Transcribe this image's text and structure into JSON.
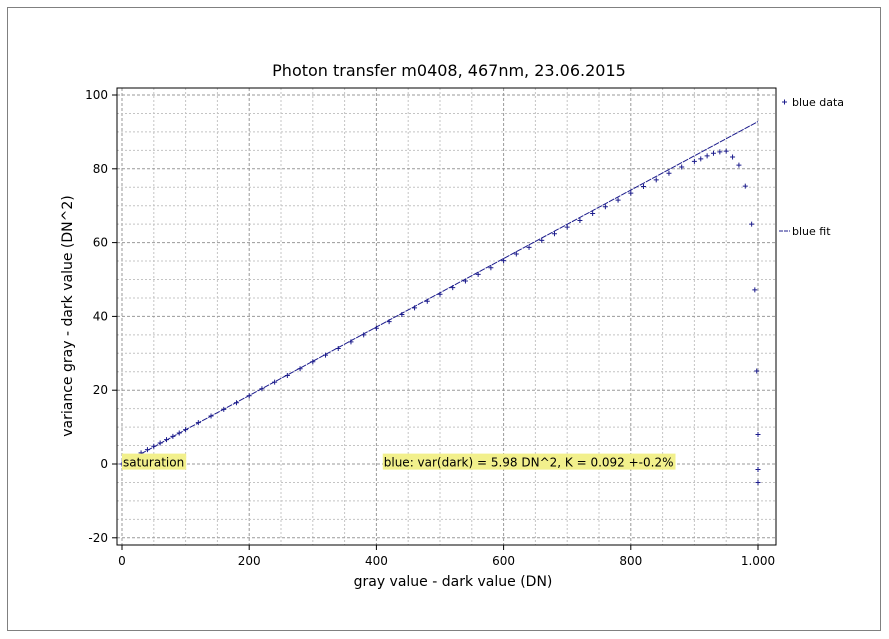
{
  "chart_data": {
    "type": "scatter",
    "title": "Photon transfer m0408, 467nm, 23.06.2015",
    "xlabel": "gray value - dark value (DN)",
    "ylabel": "variance gray - dark value (DN^2)",
    "xlim": [
      0,
      1000
    ],
    "ylim": [
      -20,
      100
    ],
    "x_ticks": [
      0,
      200,
      400,
      600,
      800,
      1000
    ],
    "x_tick_labels": [
      "0",
      "200",
      "400",
      "600",
      "800",
      "1.000"
    ],
    "y_ticks": [
      -20,
      0,
      20,
      40,
      60,
      80,
      100
    ],
    "y_tick_labels": [
      "-20",
      "0",
      "20",
      "40",
      "60",
      "80",
      "100"
    ],
    "grid": true,
    "legend_position": "right",
    "color": "#1c1c8c",
    "annotation_color": "#f2f08c",
    "series": [
      {
        "name": "blue data",
        "marker": "+",
        "x": [
          0,
          10,
          20,
          30,
          40,
          50,
          60,
          70,
          80,
          90,
          100,
          120,
          140,
          160,
          180,
          200,
          220,
          240,
          260,
          280,
          300,
          320,
          340,
          360,
          380,
          400,
          420,
          440,
          460,
          480,
          500,
          520,
          540,
          560,
          580,
          600,
          620,
          640,
          660,
          680,
          700,
          720,
          740,
          760,
          780,
          800,
          820,
          840,
          860,
          880,
          900,
          910,
          920,
          930,
          940,
          950,
          960,
          970,
          980,
          990,
          995,
          998,
          1000,
          1000,
          1000,
          1000
        ],
        "y": [
          0,
          1,
          2,
          3,
          3.9,
          4.8,
          5.7,
          6.6,
          7.5,
          8.4,
          9.3,
          11.2,
          13,
          14.8,
          16.6,
          18.5,
          20.4,
          22.2,
          24,
          25.8,
          27.7,
          29.5,
          31.3,
          33.1,
          35,
          36.8,
          38.6,
          40.5,
          42.3,
          44.1,
          46,
          47.8,
          49.6,
          51.4,
          53.2,
          55.1,
          56.9,
          58.7,
          60.6,
          62.4,
          64.2,
          66,
          67.9,
          69.7,
          71.5,
          73.4,
          75.2,
          77,
          78.8,
          80.5,
          82,
          82.7,
          83.5,
          84.2,
          84.6,
          84.8,
          83.2,
          81,
          75.3,
          65,
          47.2,
          25.2,
          8,
          -1.5,
          -5,
          -5
        ]
      },
      {
        "name": "blue fit",
        "line": "dashed",
        "x": [
          0,
          1000
        ],
        "y": [
          0,
          92.8
        ]
      }
    ],
    "annotations": [
      {
        "text": "saturation",
        "x": 0,
        "y": 2
      },
      {
        "text": "blue: var(dark) = 5.98 DN^2, K = 0.092 +-0.2%",
        "x": 410,
        "y": 2
      }
    ]
  }
}
